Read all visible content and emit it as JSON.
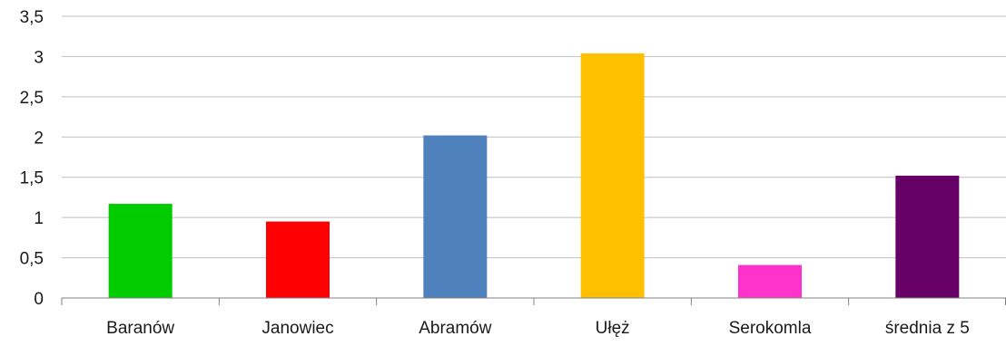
{
  "chart_data": {
    "type": "bar",
    "categories": [
      "Baranów",
      "Janowiec",
      "Abramów",
      "Ułęż",
      "Serokomla",
      "średnia z 5"
    ],
    "values": [
      1.17,
      0.95,
      2.02,
      3.04,
      0.41,
      1.52
    ],
    "colors": [
      "#00cc00",
      "#ff0000",
      "#4f81bd",
      "#ffc000",
      "#ff33cc",
      "#660066"
    ],
    "ylim": [
      0,
      3.5
    ],
    "yticks": [
      0,
      0.5,
      1,
      1.5,
      2,
      2.5,
      3,
      3.5
    ],
    "ytick_labels": [
      "0",
      "0,5",
      "1",
      "1,5",
      "2",
      "2,5",
      "3",
      "3,5"
    ],
    "grid": true,
    "legend": "none"
  }
}
